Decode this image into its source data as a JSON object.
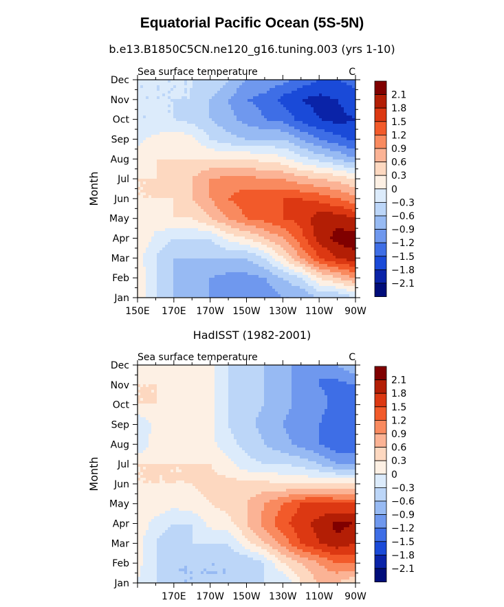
{
  "title": "Equatorial Pacific Ocean (5S-5N)",
  "colorbar_levels": [
    "2.1",
    "1.8",
    "1.5",
    "1.2",
    "0.9",
    "0.6",
    "0.3",
    "0",
    "-0.3",
    "-0.6",
    "-0.9",
    "-1.2",
    "-1.5",
    "-1.8",
    "-2.1"
  ],
  "colors": {
    "palette_warm_to_cold": [
      "#800000",
      "#b31e05",
      "#dc3812",
      "#f25a2a",
      "#f98a5f",
      "#fbb395",
      "#fdd8c0",
      "#fdf0e4",
      "#dcebfb",
      "#bcd6f8",
      "#97baf3",
      "#6f98ee",
      "#3e6ee6",
      "#1a4ad8",
      "#0a23a8",
      "#000d7a"
    ]
  },
  "chart_data": [
    {
      "type": "heatmap",
      "title": "b.e13.B1850C5CN.ne120_g16.tuning.003 (yrs 1-10)",
      "left_label": "Sea surface temperature",
      "right_label": "C",
      "xlabel": "",
      "ylabel": "Month",
      "x_tick_labels": [
        "150E",
        "170E",
        "170W",
        "150W",
        "130W",
        "110W",
        "90W"
      ],
      "x_tick_lons": [
        150,
        170,
        190,
        210,
        230,
        250,
        270
      ],
      "y_tick_labels": [
        "Jan",
        "Feb",
        "Mar",
        "Apr",
        "May",
        "Jun",
        "Jul",
        "Aug",
        "Sep",
        "Oct",
        "Nov",
        "Dec"
      ],
      "xlim": [
        150,
        270
      ],
      "ylim": [
        1,
        12
      ],
      "x": [
        150,
        160,
        170,
        180,
        190,
        200,
        210,
        220,
        230,
        240,
        250,
        260,
        270
      ],
      "y": [
        1,
        2,
        3,
        4,
        5,
        6,
        7,
        8,
        9,
        10,
        11,
        12
      ],
      "z": [
        [
          0.3,
          -0.3,
          -0.6,
          -0.6,
          -0.9,
          -1.0,
          -1.2,
          -1.1,
          -0.9,
          -0.9,
          -0.6,
          -0.6,
          -0.3
        ],
        [
          0.3,
          -0.3,
          -0.6,
          -0.9,
          -0.9,
          -1.0,
          -1.0,
          -0.9,
          -0.6,
          -0.3,
          0.3,
          0.6,
          0.9
        ],
        [
          0.1,
          -0.3,
          -0.6,
          -0.6,
          -0.6,
          -0.6,
          -0.6,
          -0.3,
          0.3,
          0.9,
          1.5,
          1.8,
          2.0
        ],
        [
          0.3,
          -0.1,
          -0.3,
          -0.3,
          -0.3,
          0.1,
          0.3,
          0.6,
          0.9,
          1.4,
          1.9,
          2.2,
          2.3
        ],
        [
          0.3,
          0.2,
          0.3,
          0.3,
          0.6,
          0.9,
          1.2,
          1.3,
          1.5,
          1.6,
          2.0,
          2.0,
          1.8
        ],
        [
          0.3,
          0.3,
          0.3,
          0.6,
          0.9,
          1.2,
          1.4,
          1.5,
          1.5,
          1.5,
          1.4,
          1.2,
          1.0
        ],
        [
          0.3,
          0.3,
          0.4,
          0.6,
          0.9,
          1.0,
          1.0,
          0.9,
          0.9,
          0.7,
          0.6,
          0.5,
          0.3
        ],
        [
          0.2,
          0.3,
          0.3,
          0.3,
          0.3,
          0.3,
          0.3,
          0.2,
          0.1,
          -0.2,
          -0.4,
          -0.6,
          -0.9
        ],
        [
          -0.1,
          0.1,
          0.2,
          0.1,
          -0.3,
          -0.5,
          -0.6,
          -0.6,
          -0.6,
          -0.9,
          -1.2,
          -1.4,
          -1.6
        ],
        [
          -0.3,
          -0.3,
          -0.3,
          -0.4,
          -0.6,
          -0.8,
          -1.0,
          -1.2,
          -1.3,
          -1.6,
          -1.8,
          -1.9,
          -1.8
        ],
        [
          -0.3,
          -0.3,
          -0.3,
          -0.3,
          -0.6,
          -0.9,
          -1.2,
          -1.3,
          -1.6,
          -1.8,
          -1.9,
          -1.8,
          -1.6
        ],
        [
          -0.3,
          -0.3,
          -0.3,
          -0.3,
          -0.3,
          -0.6,
          -0.9,
          -1.0,
          -1.1,
          -1.3,
          -1.5,
          -1.5,
          -1.4
        ]
      ]
    },
    {
      "type": "heatmap",
      "title": "HadISST (1982-2001)",
      "left_label": "Sea surface temperature",
      "right_label": "C",
      "xlabel": "",
      "ylabel": "Month",
      "x_tick_labels": [
        "170E",
        "170W",
        "150W",
        "130W",
        "110W",
        "90W"
      ],
      "x_tick_lons": [
        170,
        190,
        210,
        230,
        250,
        270
      ],
      "y_tick_labels": [
        "Jan",
        "Feb",
        "Mar",
        "Apr",
        "May",
        "Jun",
        "Jul",
        "Aug",
        "Sep",
        "Oct",
        "Nov",
        "Dec"
      ],
      "xlim": [
        150,
        270
      ],
      "ylim": [
        1,
        12
      ],
      "x": [
        150,
        160,
        170,
        180,
        190,
        200,
        210,
        220,
        230,
        240,
        250,
        260,
        270
      ],
      "y": [
        1,
        2,
        3,
        4,
        5,
        6,
        7,
        8,
        9,
        10,
        11,
        12
      ],
      "z": [
        [
          0.0,
          -0.3,
          -0.6,
          -0.6,
          -0.6,
          -0.6,
          -0.3,
          -0.3,
          -0.3,
          0.3,
          0.6,
          0.6,
          0.3
        ],
        [
          0.1,
          -0.3,
          -0.6,
          -0.6,
          -0.6,
          -0.6,
          -0.6,
          -0.3,
          0.3,
          0.6,
          0.9,
          1.2,
          1.2
        ],
        [
          0.1,
          -0.3,
          -0.6,
          -0.3,
          -0.3,
          -0.3,
          0.2,
          0.6,
          1.0,
          1.5,
          1.8,
          2.0,
          1.8
        ],
        [
          0.2,
          -0.1,
          -0.3,
          -0.3,
          0.1,
          0.2,
          0.6,
          1.0,
          1.4,
          1.7,
          1.9,
          2.2,
          2.1
        ],
        [
          0.2,
          0.2,
          0.1,
          0.2,
          0.3,
          0.4,
          0.6,
          0.9,
          1.2,
          1.5,
          1.6,
          1.5,
          1.5
        ],
        [
          0.3,
          0.3,
          0.3,
          0.3,
          0.4,
          0.4,
          0.4,
          0.4,
          0.3,
          0.3,
          0.3,
          0.3,
          0.3
        ],
        [
          0.3,
          0.3,
          0.3,
          0.3,
          0.3,
          0.1,
          -0.2,
          -0.3,
          -0.3,
          -0.4,
          -0.6,
          -0.9,
          -0.9
        ],
        [
          -0.3,
          0.2,
          0.2,
          0.1,
          0.1,
          -0.2,
          -0.4,
          -0.6,
          -0.8,
          -1.0,
          -1.2,
          -1.4,
          -1.5
        ],
        [
          -0.3,
          0.1,
          0.3,
          0.1,
          0.1,
          -0.3,
          -0.5,
          -0.7,
          -0.9,
          -1.1,
          -1.2,
          -1.4,
          -1.5
        ],
        [
          0.3,
          0.3,
          0.2,
          0.1,
          0.1,
          -0.3,
          -0.5,
          -0.6,
          -0.8,
          -1.0,
          -1.1,
          -1.3,
          -1.5
        ],
        [
          0.3,
          0.3,
          0.3,
          0.2,
          0.1,
          -0.3,
          -0.4,
          -0.6,
          -0.8,
          -1.0,
          -1.2,
          -1.3,
          -1.2
        ],
        [
          0.1,
          0.1,
          0.1,
          0.1,
          0.1,
          -0.3,
          -0.3,
          -0.6,
          -0.8,
          -1.0,
          -1.2,
          -0.9,
          -0.6
        ]
      ]
    }
  ]
}
